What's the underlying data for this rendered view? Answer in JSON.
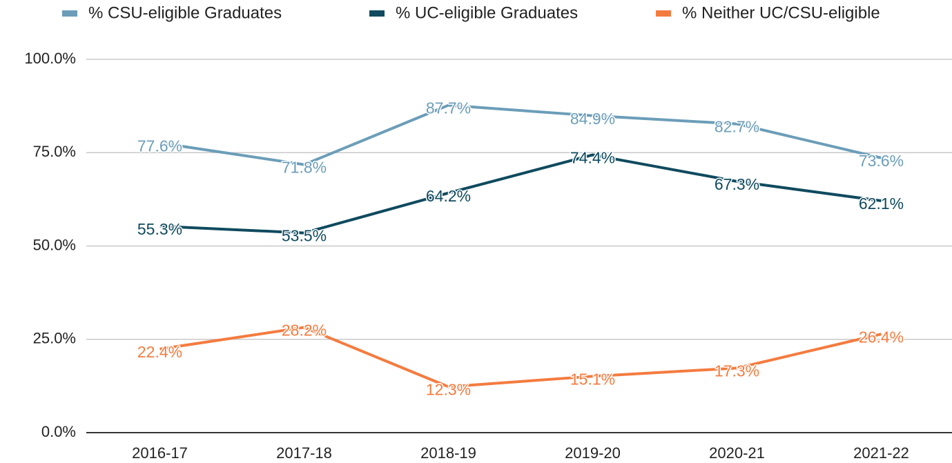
{
  "chart_data": {
    "type": "line",
    "categories": [
      "2016-17",
      "2017-18",
      "2018-19",
      "2019-20",
      "2020-21",
      "2021-22"
    ],
    "series": [
      {
        "name": "% CSU-eligible Graduates",
        "color": "#6b9db8",
        "values": [
          77.6,
          71.8,
          87.7,
          84.9,
          82.7,
          73.6
        ],
        "value_labels": [
          "77.6%",
          "71.8%",
          "87.7%",
          "84.9%",
          "82.7%",
          "73.6%"
        ]
      },
      {
        "name": "% UC-eligible Graduates",
        "color": "#0f4a5e",
        "values": [
          55.3,
          53.5,
          64.2,
          74.4,
          67.3,
          62.1
        ],
        "value_labels": [
          "55.3%",
          "53.5%",
          "64.2%",
          "74.4%",
          "67.3%",
          "62.1%"
        ]
      },
      {
        "name": "% Neither UC/CSU-eligible",
        "color": "#f47b3f",
        "values": [
          22.4,
          28.2,
          12.3,
          15.1,
          17.3,
          26.4
        ],
        "value_labels": [
          "22.4%",
          "28.2%",
          "12.3%",
          "15.1%",
          "17.3%",
          "26.4%"
        ]
      }
    ],
    "ylim": [
      0,
      100
    ],
    "yticks": [
      {
        "value": 0,
        "label": "0.0%"
      },
      {
        "value": 25,
        "label": "25.0%"
      },
      {
        "value": 50,
        "label": "50.0%"
      },
      {
        "value": 75,
        "label": "75.0%"
      },
      {
        "value": 100,
        "label": "100.0%"
      }
    ],
    "grid": true
  }
}
